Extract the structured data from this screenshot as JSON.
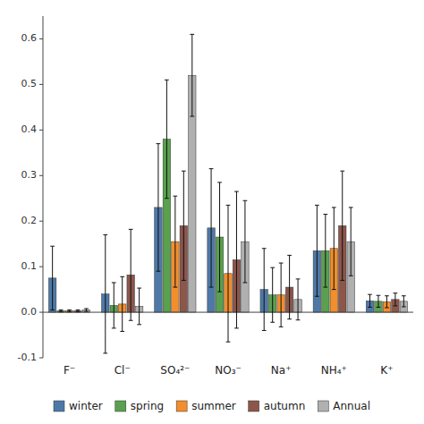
{
  "chart_data": {
    "type": "bar",
    "categories": [
      "F⁻",
      "Cl⁻",
      "SO₄²⁻",
      "NO₃⁻",
      "Na⁺",
      "NH₄⁺",
      "K⁺"
    ],
    "series": [
      {
        "name": "winter",
        "color": "#4e79a7",
        "values": [
          0.075,
          0.04,
          0.23,
          0.185,
          0.05,
          0.135,
          0.025
        ],
        "errors": [
          0.07,
          0.13,
          0.14,
          0.13,
          0.09,
          0.1,
          0.014
        ]
      },
      {
        "name": "spring",
        "color": "#59a14f",
        "values": [
          0.003,
          0.015,
          0.38,
          0.165,
          0.038,
          0.135,
          0.024
        ],
        "errors": [
          0.002,
          0.05,
          0.13,
          0.12,
          0.06,
          0.08,
          0.013
        ]
      },
      {
        "name": "summer",
        "color": "#f28e2b",
        "values": [
          0.003,
          0.018,
          0.155,
          0.085,
          0.038,
          0.14,
          0.023
        ],
        "errors": [
          0.002,
          0.06,
          0.1,
          0.15,
          0.07,
          0.09,
          0.013
        ]
      },
      {
        "name": "autumn",
        "color": "#8c564b",
        "values": [
          0.003,
          0.082,
          0.19,
          0.115,
          0.055,
          0.19,
          0.028
        ],
        "errors": [
          0.002,
          0.1,
          0.12,
          0.15,
          0.07,
          0.12,
          0.014
        ]
      },
      {
        "name": "Annual",
        "color": "#b0b0b0",
        "values": [
          0.005,
          0.013,
          0.52,
          0.155,
          0.028,
          0.155,
          0.024
        ],
        "errors": [
          0.003,
          0.04,
          0.09,
          0.09,
          0.045,
          0.075,
          0.012
        ]
      }
    ],
    "ylim": [
      -0.1,
      0.65
    ],
    "yticks": [
      -0.1,
      {
        "value": 0,
        "label": "0.0"
      },
      0.1,
      0.2,
      0.3,
      0.4,
      0.5,
      0.6
    ],
    "grid": false,
    "legend": "bottom"
  }
}
